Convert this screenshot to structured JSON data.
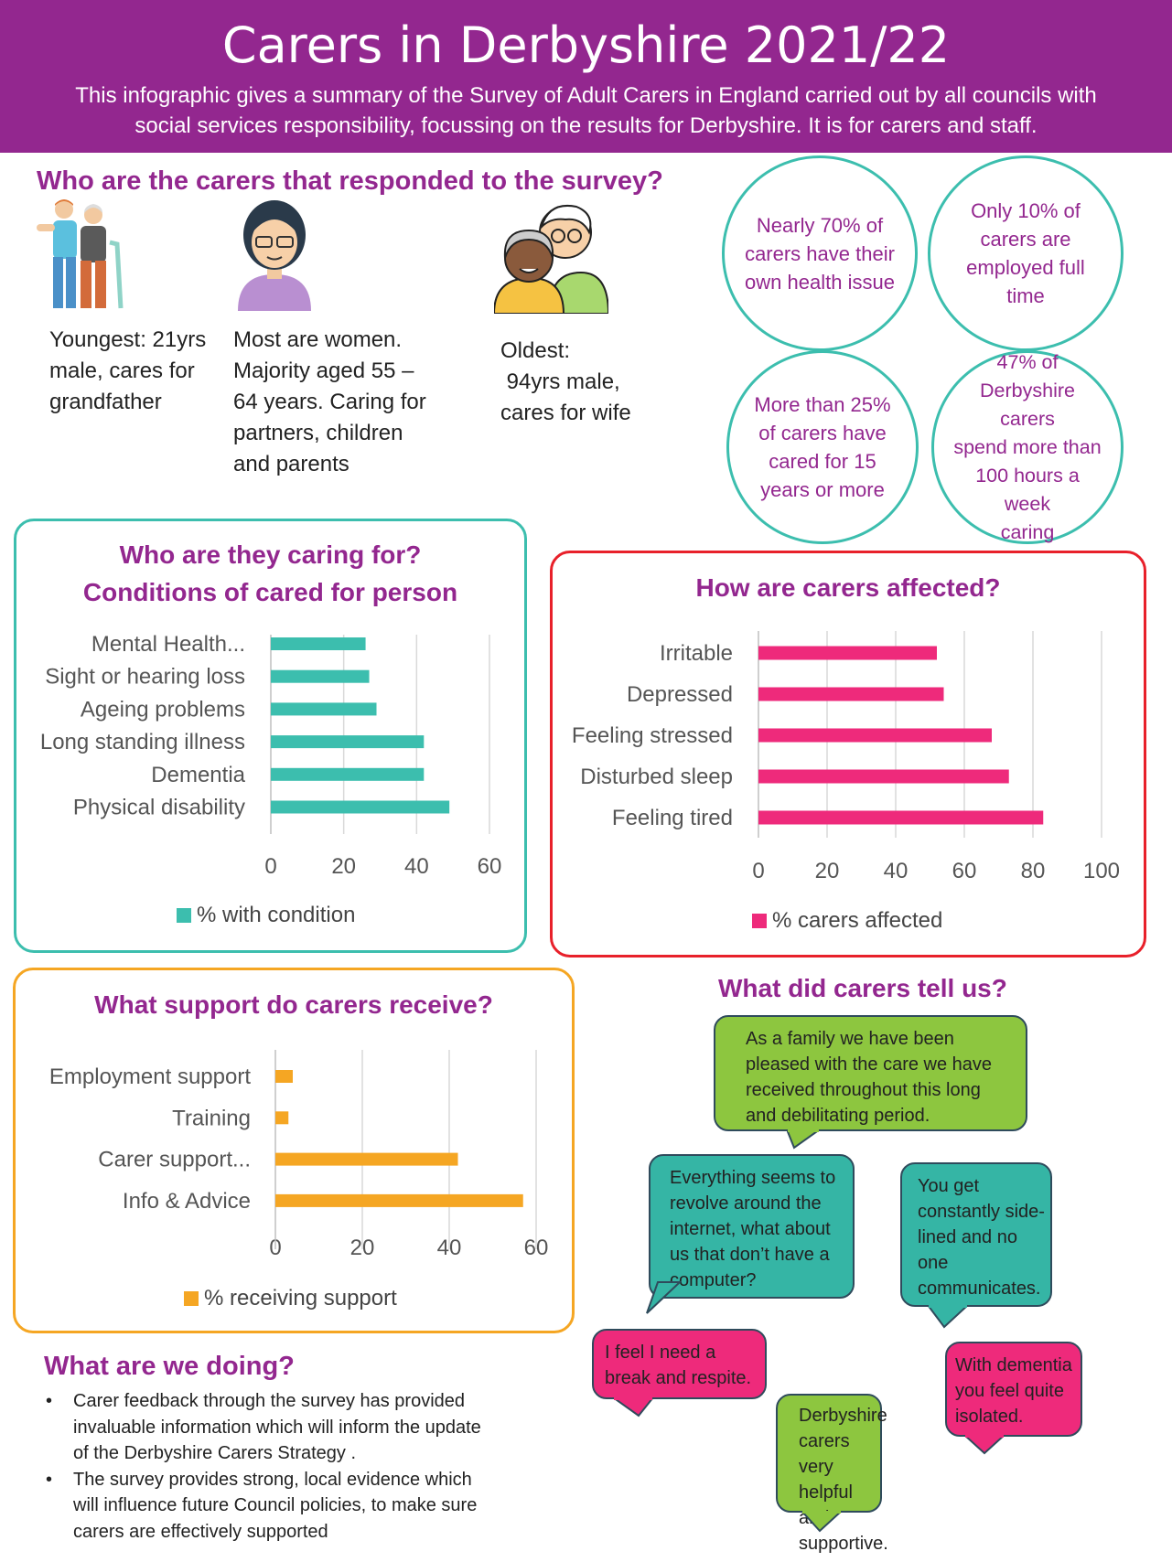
{
  "header": {
    "title": "Carers in Derbyshire 2021/22",
    "subtitle_line1": "This infographic gives a summary of the Survey of Adult Carers in England carried out by all councils with",
    "subtitle_line2": "social services responsibility, focussing on the results for Derbyshire. It is for carers and staff."
  },
  "who": {
    "title": "Who are the carers that responded to the survey?",
    "youngest": [
      "Youngest: 21yrs",
      "male, cares for",
      "grandfather"
    ],
    "most": [
      "Most are women.",
      "Majority aged 55 –",
      "64 years. Caring for",
      "partners, children",
      "and parents"
    ],
    "oldest": [
      "Oldest:",
      " 94yrs male,",
      "cares for wife"
    ]
  },
  "stats": {
    "health": [
      "Nearly 70% of",
      "carers have their",
      "own health issue"
    ],
    "employed": [
      "Only 10% of",
      "carers are",
      "employed full",
      "time"
    ],
    "years": [
      "More than 25%",
      "of carers have",
      "cared for 15",
      "years or more"
    ],
    "hours": [
      "47% of",
      "Derbyshire carers",
      "spend more than",
      "100 hours a week",
      "caring"
    ]
  },
  "colors": {
    "purple": "#93278f",
    "teal": "#3cbeae",
    "pink": "#ee2a7b",
    "orange": "#f5a623",
    "green": "#8dc63f",
    "bubble_teal": "#35b5a5"
  },
  "chart_data": [
    {
      "type": "bar",
      "orientation": "horizontal",
      "title": "Who are they caring for?",
      "subtitle": "Conditions of cared for person",
      "categories": [
        "Mental Health...",
        "Sight or hearing loss",
        "Ageing problems",
        "Long standing illness",
        "Dementia",
        "Physical disability"
      ],
      "values": [
        26,
        27,
        29,
        42,
        42,
        49
      ],
      "xlim": [
        0,
        60
      ],
      "xticks": [
        "0",
        "20",
        "40",
        "60"
      ],
      "legend": "% with condition",
      "grid": true
    },
    {
      "type": "bar",
      "orientation": "horizontal",
      "title": "How are carers affected?",
      "categories": [
        "Irritable",
        "Depressed",
        "Feeling stressed",
        "Disturbed sleep",
        "Feeling tired"
      ],
      "values": [
        52,
        54,
        68,
        73,
        83
      ],
      "xlim": [
        0,
        100
      ],
      "xticks": [
        "0",
        "20",
        "40",
        "60",
        "80",
        "100"
      ],
      "legend": "% carers affected",
      "grid": true
    },
    {
      "type": "bar",
      "orientation": "horizontal",
      "title": "What support do carers receive?",
      "categories": [
        "Employment support",
        "Training",
        "Carer support...",
        "Info & Advice"
      ],
      "values": [
        4,
        3,
        42,
        57
      ],
      "xlim": [
        0,
        60
      ],
      "xticks": [
        "0",
        "20",
        "40",
        "60"
      ],
      "legend": "% receiving support",
      "grid": true
    }
  ],
  "quotes": {
    "title": "What did carers tell us?",
    "q1": [
      "As a family we have been",
      "pleased with the care we have",
      "received throughout this long",
      "and debilitating period."
    ],
    "q2": [
      "Everything seems to",
      "revolve around the",
      "internet, what about",
      "us that don’t have a",
      "computer?"
    ],
    "q3": [
      "You get",
      "constantly side-",
      "lined and no",
      "one",
      "communicates."
    ],
    "q4": [
      "I feel I need a",
      "break and respite."
    ],
    "q5": [
      "Derbyshire",
      "carers very",
      "helpful and",
      "supportive."
    ],
    "q6": [
      "With dementia",
      "you feel quite",
      "isolated."
    ]
  },
  "doing": {
    "title": "What are we doing?",
    "items": [
      [
        "Carer feedback through the survey has provided",
        "invaluable information which will inform the update",
        "of the Derbyshire Carers Strategy ."
      ],
      [
        "The survey provides strong, local evidence which",
        "will influence future Council policies, to make sure",
        "carers are effectively supported"
      ]
    ]
  }
}
